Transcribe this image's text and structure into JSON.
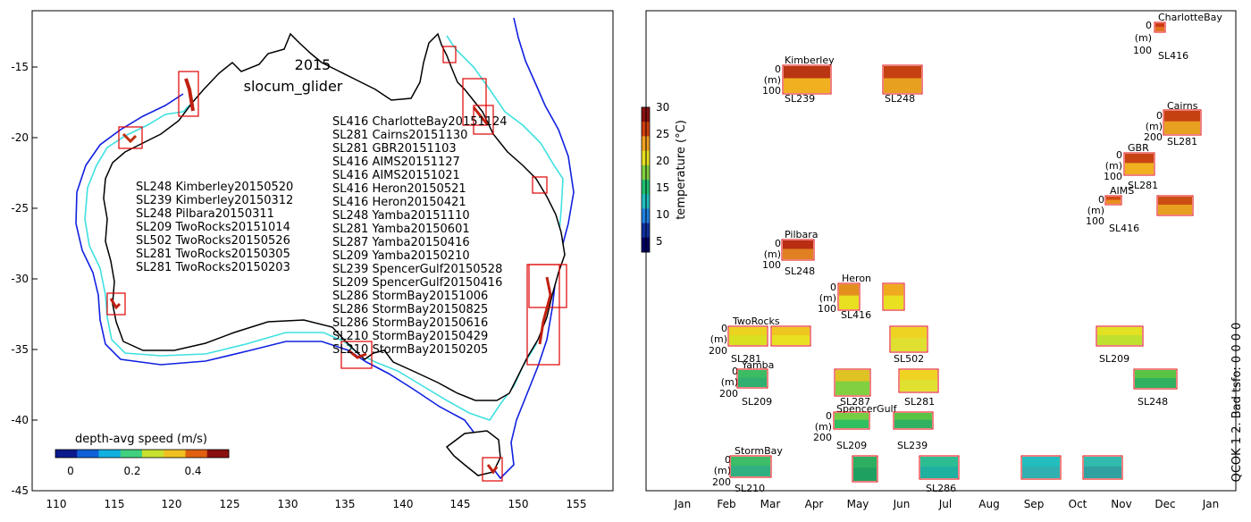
{
  "map": {
    "title_year": "2015",
    "title_platform": "slocum_glider",
    "lat_ticks": [
      "-15",
      "-20",
      "-25",
      "-30",
      "-35",
      "-40",
      "-45"
    ],
    "lon_ticks": [
      "110",
      "115",
      "120",
      "125",
      "130",
      "135",
      "140",
      "145",
      "150",
      "155"
    ],
    "colorbar_title": "depth-avg speed (m/s)",
    "colorbar_ticks": [
      "0",
      "0.2",
      "0.4"
    ],
    "colorbar_colors": [
      "#0b1a8c",
      "#1060d8",
      "#10b0e0",
      "#40d080",
      "#c8e030",
      "#f0c020",
      "#e06010",
      "#8a1010"
    ],
    "legend_left": [
      "SL248 Kimberley20150520",
      "SL239 Kimberley20150312",
      "SL248 Pilbara20150311",
      "SL209 TwoRocks20151014",
      "SL502 TwoRocks20150526",
      "SL281 TwoRocks20150305",
      "SL281 TwoRocks20150203"
    ],
    "legend_right": [
      "SL416 CharlotteBay20151124",
      "SL281 Cairns20151130",
      "SL281 GBR20151103",
      "SL416 AIMS20151127",
      "SL416 AIMS20151021",
      "SL416 Heron20150521",
      "SL416 Heron20150421",
      "SL248 Yamba20151110",
      "SL281 Yamba20150601",
      "SL287 Yamba20150416",
      "SL209 Yamba20150210",
      "SL239 SpencerGulf20150528",
      "SL209 SpencerGulf20150416",
      "SL286 StormBay20151006",
      "SL286 StormBay20150825",
      "SL286 StormBay20150616",
      "SL210 StormBay20150429",
      "SL210 StormBay20150205"
    ]
  },
  "temp_colorbar": {
    "label": "temperature (°C)",
    "ticks": [
      "30",
      "25",
      "20",
      "15",
      "10",
      "5"
    ],
    "colors": [
      "#8a1010",
      "#d04010",
      "#f0a020",
      "#e8e020",
      "#80d040",
      "#20c070",
      "#20c0c0",
      "#2080e0",
      "#1030a0",
      "#000060"
    ]
  },
  "timeline": {
    "months": [
      "Jan",
      "Feb",
      "Mar",
      "Apr",
      "May",
      "Jun",
      "Jul",
      "Aug",
      "Sep",
      "Oct",
      "Nov",
      "Dec",
      "Jan"
    ],
    "side_label": "QCOK 1  2. Bad tsfo: 0  0  0  0",
    "depth_unit": "(m)",
    "sites": [
      {
        "name": "CharlotteBay",
        "axis_top": "0",
        "axis_bottom": "100",
        "glider": "SL416"
      },
      {
        "name": "Kimberley",
        "axis_top": "0",
        "axis_bottom": "100",
        "glider": "SL239",
        "glider2": "SL248"
      },
      {
        "name": "Cairns",
        "axis_top": "0",
        "axis_bottom": "200",
        "glider": "SL281"
      },
      {
        "name": "GBR",
        "axis_top": "0",
        "axis_bottom": "100",
        "glider": "SL281"
      },
      {
        "name": "AIMS",
        "axis_top": "0",
        "axis_bottom": "100",
        "glider": "SL416"
      },
      {
        "name": "Pilbara",
        "axis_top": "0",
        "axis_bottom": "100",
        "glider": "SL248"
      },
      {
        "name": "Heron",
        "axis_top": "0",
        "axis_bottom": "100",
        "glider": "SL416"
      },
      {
        "name": "TwoRocks",
        "axis_top": "0",
        "axis_bottom": "200",
        "glider": "SL281",
        "glider2": "SL502",
        "glider3": "SL209"
      },
      {
        "name": "Yamba",
        "axis_top": "0",
        "axis_bottom": "200",
        "glider": "SL209",
        "glider2": "SL287",
        "glider3": "SL281",
        "glider4": "SL248"
      },
      {
        "name": "SpencerGulf",
        "axis_top": "0",
        "axis_bottom": "200",
        "glider": "SL209",
        "glider2": "SL239"
      },
      {
        "name": "StormBay",
        "axis_top": "0",
        "axis_bottom": "200",
        "glider": "SL210",
        "glider2": "SL286"
      }
    ]
  }
}
